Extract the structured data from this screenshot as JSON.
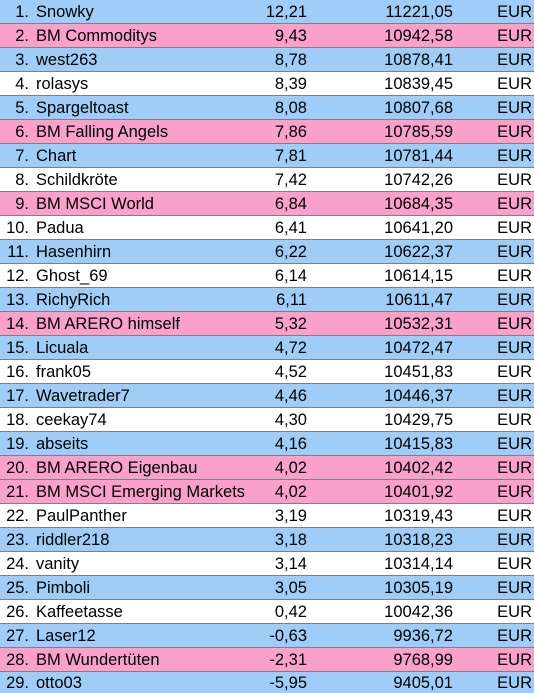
{
  "colors": {
    "blue": "#9fcdf7",
    "pink": "#f9a0cc",
    "white": "#ffffff",
    "separator": "#7f7f7f"
  },
  "rows": [
    {
      "rank": "1.",
      "name": "Snowky",
      "pct": "12,21",
      "amount": "11221,05",
      "currency": "EUR",
      "bg": "blue"
    },
    {
      "rank": "2.",
      "name": "BM Commoditys",
      "pct": "9,43",
      "amount": "10942,58",
      "currency": "EUR",
      "bg": "pink"
    },
    {
      "rank": "3.",
      "name": "west263",
      "pct": "8,78",
      "amount": "10878,41",
      "currency": "EUR",
      "bg": "blue"
    },
    {
      "rank": "4.",
      "name": "rolasys",
      "pct": "8,39",
      "amount": "10839,45",
      "currency": "EUR",
      "bg": "white"
    },
    {
      "rank": "5.",
      "name": "Spargeltoast",
      "pct": "8,08",
      "amount": "10807,68",
      "currency": "EUR",
      "bg": "blue"
    },
    {
      "rank": "6.",
      "name": "BM Falling Angels",
      "pct": "7,86",
      "amount": "10785,59",
      "currency": "EUR",
      "bg": "pink"
    },
    {
      "rank": "7.",
      "name": "Chart",
      "pct": "7,81",
      "amount": "10781,44",
      "currency": "EUR",
      "bg": "blue"
    },
    {
      "rank": "8.",
      "name": "Schildkröte",
      "pct": "7,42",
      "amount": "10742,26",
      "currency": "EUR",
      "bg": "white"
    },
    {
      "rank": "9.",
      "name": "BM MSCI World",
      "pct": "6,84",
      "amount": "10684,35",
      "currency": "EUR",
      "bg": "pink"
    },
    {
      "rank": "10.",
      "name": "Padua",
      "pct": "6,41",
      "amount": "10641,20",
      "currency": "EUR",
      "bg": "white"
    },
    {
      "rank": "11.",
      "name": "Hasenhirn",
      "pct": "6,22",
      "amount": "10622,37",
      "currency": "EUR",
      "bg": "blue"
    },
    {
      "rank": "12.",
      "name": "Ghost_69",
      "pct": "6,14",
      "amount": "10614,15",
      "currency": "EUR",
      "bg": "white"
    },
    {
      "rank": "13.",
      "name": "RichyRich",
      "pct": "6,11",
      "amount": "10611,47",
      "currency": "EUR",
      "bg": "blue"
    },
    {
      "rank": "14.",
      "name": "BM ARERO himself",
      "pct": "5,32",
      "amount": "10532,31",
      "currency": "EUR",
      "bg": "pink"
    },
    {
      "rank": "15.",
      "name": "Licuala",
      "pct": "4,72",
      "amount": "10472,47",
      "currency": "EUR",
      "bg": "blue"
    },
    {
      "rank": "16.",
      "name": "frank05",
      "pct": "4,52",
      "amount": "10451,83",
      "currency": "EUR",
      "bg": "white"
    },
    {
      "rank": "17.",
      "name": "Wavetrader7",
      "pct": "4,46",
      "amount": "10446,37",
      "currency": "EUR",
      "bg": "blue"
    },
    {
      "rank": "18.",
      "name": "ceekay74",
      "pct": "4,30",
      "amount": "10429,75",
      "currency": "EUR",
      "bg": "white"
    },
    {
      "rank": "19.",
      "name": "abseits",
      "pct": "4,16",
      "amount": "10415,83",
      "currency": "EUR",
      "bg": "blue"
    },
    {
      "rank": "20.",
      "name": "BM ARERO Eigenbau",
      "pct": "4,02",
      "amount": "10402,42",
      "currency": "EUR",
      "bg": "pink"
    },
    {
      "rank": "21.",
      "name": "BM MSCI Emerging Markets",
      "pct": "4,02",
      "amount": "10401,92",
      "currency": "EUR",
      "bg": "pink"
    },
    {
      "rank": "22.",
      "name": "PaulPanther",
      "pct": "3,19",
      "amount": "10319,43",
      "currency": "EUR",
      "bg": "white"
    },
    {
      "rank": "23.",
      "name": "riddler218",
      "pct": "3,18",
      "amount": "10318,23",
      "currency": "EUR",
      "bg": "blue"
    },
    {
      "rank": "24.",
      "name": "vanity",
      "pct": "3,14",
      "amount": "10314,14",
      "currency": "EUR",
      "bg": "white"
    },
    {
      "rank": "25.",
      "name": "Pimboli",
      "pct": "3,05",
      "amount": "10305,19",
      "currency": "EUR",
      "bg": "blue"
    },
    {
      "rank": "26.",
      "name": "Kaffeetasse",
      "pct": "0,42",
      "amount": "10042,36",
      "currency": "EUR",
      "bg": "white"
    },
    {
      "rank": "27.",
      "name": "Laser12",
      "pct": "-0,63",
      "amount": "9936,72",
      "currency": "EUR",
      "bg": "blue"
    },
    {
      "rank": "28.",
      "name": "BM Wundertüten",
      "pct": "-2,31",
      "amount": "9768,99",
      "currency": "EUR",
      "bg": "pink"
    },
    {
      "rank": "29.",
      "name": "otto03",
      "pct": "-5,95",
      "amount": "9405,01",
      "currency": "EUR",
      "bg": "blue"
    }
  ]
}
